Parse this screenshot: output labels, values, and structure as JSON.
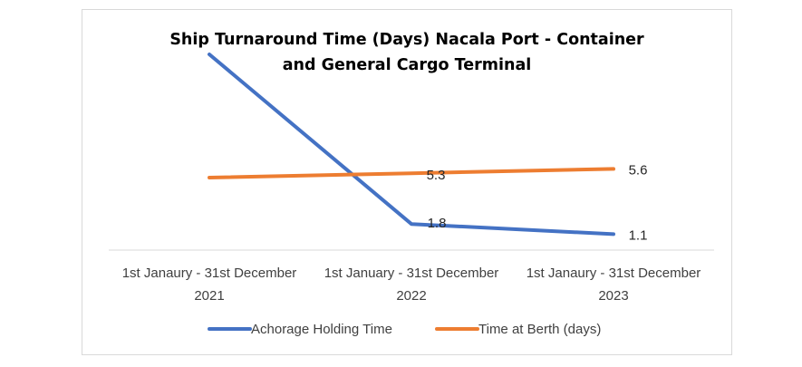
{
  "chart_data": {
    "type": "line",
    "title_line1": "Ship Turnaround Time (Days) Nacala Port - Container",
    "title_line2": "and General Cargo Terminal",
    "categories": [
      [
        "1st Janaury - 31st December",
        "2021"
      ],
      [
        "1st January - 31st December",
        "2022"
      ],
      [
        "1st Janaury - 31st December",
        "2023"
      ]
    ],
    "series": [
      {
        "name": "Achorage Holding Time",
        "color": "#4472c4",
        "values": [
          13.5,
          1.8,
          1.1
        ],
        "labels": [
          "",
          "1.8",
          "1.1"
        ]
      },
      {
        "name": "Time at Berth (days)",
        "color": "#ed7d31",
        "values": [
          5.0,
          5.3,
          5.6
        ],
        "labels": [
          "",
          "5.3",
          "5.6"
        ]
      }
    ],
    "ylim": [
      0,
      16
    ],
    "grid": false,
    "legend": "bottom"
  }
}
